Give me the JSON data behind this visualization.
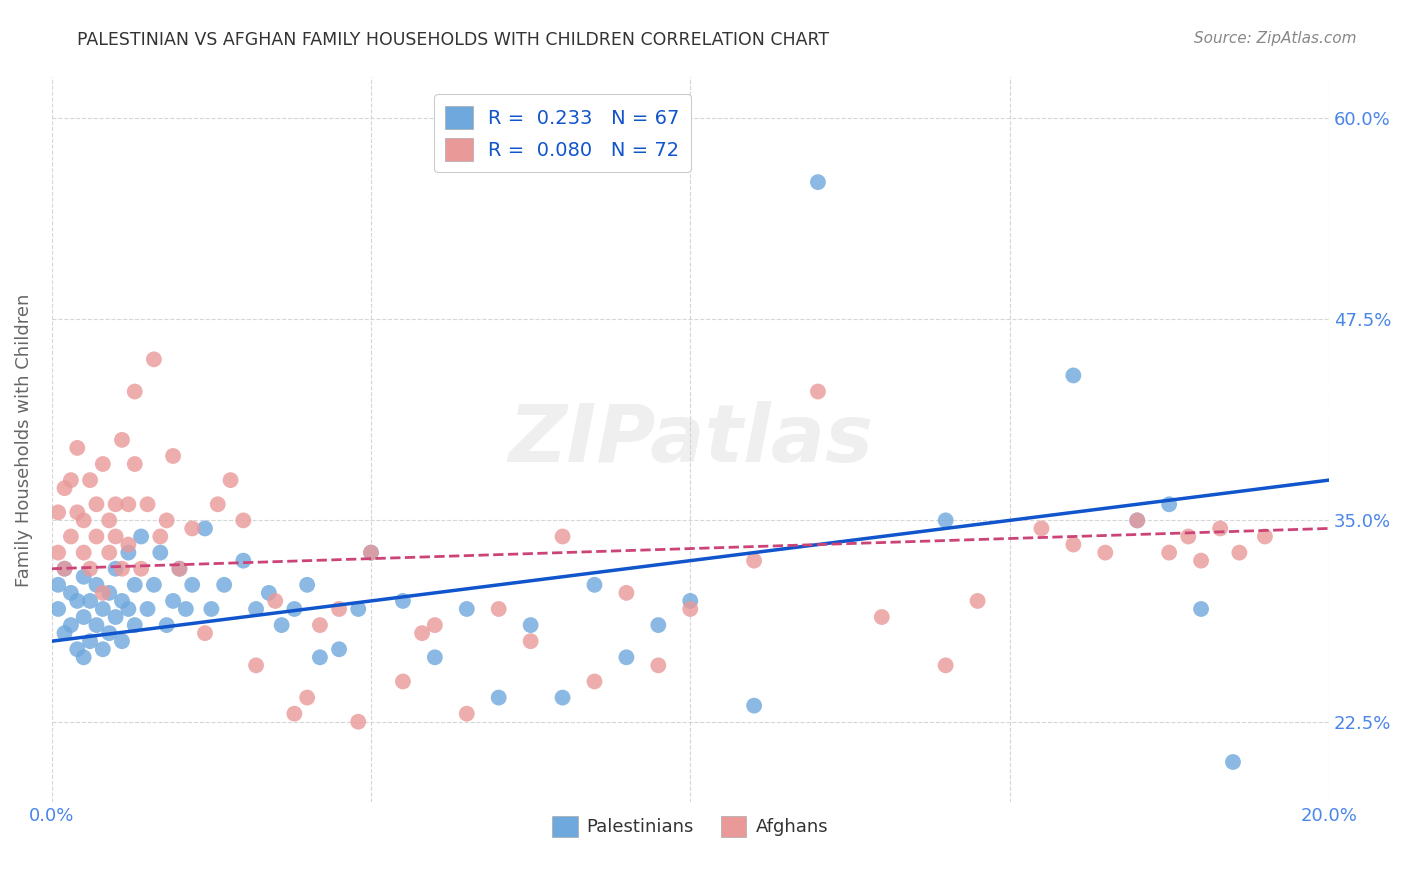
{
  "title": "PALESTINIAN VS AFGHAN FAMILY HOUSEHOLDS WITH CHILDREN CORRELATION CHART",
  "source": "Source: ZipAtlas.com",
  "ylabel": "Family Households with Children",
  "watermark": "ZIPatlas",
  "xlim": [
    0.0,
    0.2
  ],
  "ylim": [
    0.175,
    0.625
  ],
  "xtick_positions": [
    0.0,
    0.05,
    0.1,
    0.15,
    0.2
  ],
  "xtick_labels": [
    "0.0%",
    "",
    "",
    "",
    "20.0%"
  ],
  "ytick_labels_right": [
    "60.0%",
    "47.5%",
    "35.0%",
    "22.5%"
  ],
  "yticks_right": [
    0.6,
    0.475,
    0.35,
    0.225
  ],
  "blue_R": "0.233",
  "blue_N": "67",
  "pink_R": "0.080",
  "pink_N": "72",
  "blue_color": "#6fa8dc",
  "pink_color": "#ea9999",
  "blue_line_color": "#1155cc",
  "pink_line_color": "#cc4477",
  "axis_color": "#4a86e8",
  "grid_color": "#cccccc",
  "background_color": "#ffffff",
  "blue_line_y0": 0.275,
  "blue_line_y1": 0.375,
  "pink_line_y0": 0.32,
  "pink_line_y1": 0.345,
  "blue_points_x": [
    0.001,
    0.001,
    0.002,
    0.002,
    0.003,
    0.003,
    0.004,
    0.004,
    0.005,
    0.005,
    0.005,
    0.006,
    0.006,
    0.007,
    0.007,
    0.008,
    0.008,
    0.009,
    0.009,
    0.01,
    0.01,
    0.011,
    0.011,
    0.012,
    0.012,
    0.013,
    0.013,
    0.014,
    0.015,
    0.016,
    0.017,
    0.018,
    0.019,
    0.02,
    0.021,
    0.022,
    0.024,
    0.025,
    0.027,
    0.03,
    0.032,
    0.034,
    0.036,
    0.038,
    0.04,
    0.042,
    0.045,
    0.048,
    0.05,
    0.055,
    0.06,
    0.065,
    0.07,
    0.075,
    0.08,
    0.085,
    0.09,
    0.095,
    0.1,
    0.11,
    0.12,
    0.14,
    0.16,
    0.17,
    0.175,
    0.18,
    0.185
  ],
  "blue_points_y": [
    0.295,
    0.31,
    0.28,
    0.32,
    0.305,
    0.285,
    0.3,
    0.27,
    0.315,
    0.29,
    0.265,
    0.3,
    0.275,
    0.31,
    0.285,
    0.295,
    0.27,
    0.305,
    0.28,
    0.32,
    0.29,
    0.3,
    0.275,
    0.33,
    0.295,
    0.285,
    0.31,
    0.34,
    0.295,
    0.31,
    0.33,
    0.285,
    0.3,
    0.32,
    0.295,
    0.31,
    0.345,
    0.295,
    0.31,
    0.325,
    0.295,
    0.305,
    0.285,
    0.295,
    0.31,
    0.265,
    0.27,
    0.295,
    0.33,
    0.3,
    0.265,
    0.295,
    0.24,
    0.285,
    0.24,
    0.31,
    0.265,
    0.285,
    0.3,
    0.235,
    0.56,
    0.35,
    0.44,
    0.35,
    0.36,
    0.295,
    0.2
  ],
  "pink_points_x": [
    0.001,
    0.001,
    0.002,
    0.002,
    0.003,
    0.003,
    0.004,
    0.004,
    0.005,
    0.005,
    0.006,
    0.006,
    0.007,
    0.007,
    0.008,
    0.008,
    0.009,
    0.009,
    0.01,
    0.01,
    0.011,
    0.011,
    0.012,
    0.012,
    0.013,
    0.013,
    0.014,
    0.015,
    0.016,
    0.017,
    0.018,
    0.019,
    0.02,
    0.022,
    0.024,
    0.026,
    0.028,
    0.03,
    0.032,
    0.035,
    0.038,
    0.04,
    0.042,
    0.045,
    0.048,
    0.05,
    0.055,
    0.058,
    0.06,
    0.065,
    0.07,
    0.075,
    0.08,
    0.085,
    0.09,
    0.095,
    0.1,
    0.11,
    0.12,
    0.13,
    0.14,
    0.145,
    0.155,
    0.16,
    0.165,
    0.17,
    0.175,
    0.178,
    0.18,
    0.183,
    0.186,
    0.19
  ],
  "pink_points_y": [
    0.33,
    0.355,
    0.32,
    0.37,
    0.34,
    0.375,
    0.395,
    0.355,
    0.33,
    0.35,
    0.375,
    0.32,
    0.36,
    0.34,
    0.385,
    0.305,
    0.35,
    0.33,
    0.36,
    0.34,
    0.4,
    0.32,
    0.36,
    0.335,
    0.385,
    0.43,
    0.32,
    0.36,
    0.45,
    0.34,
    0.35,
    0.39,
    0.32,
    0.345,
    0.28,
    0.36,
    0.375,
    0.35,
    0.26,
    0.3,
    0.23,
    0.24,
    0.285,
    0.295,
    0.225,
    0.33,
    0.25,
    0.28,
    0.285,
    0.23,
    0.295,
    0.275,
    0.34,
    0.25,
    0.305,
    0.26,
    0.295,
    0.325,
    0.43,
    0.29,
    0.26,
    0.3,
    0.345,
    0.335,
    0.33,
    0.35,
    0.33,
    0.34,
    0.325,
    0.345,
    0.33,
    0.34
  ]
}
